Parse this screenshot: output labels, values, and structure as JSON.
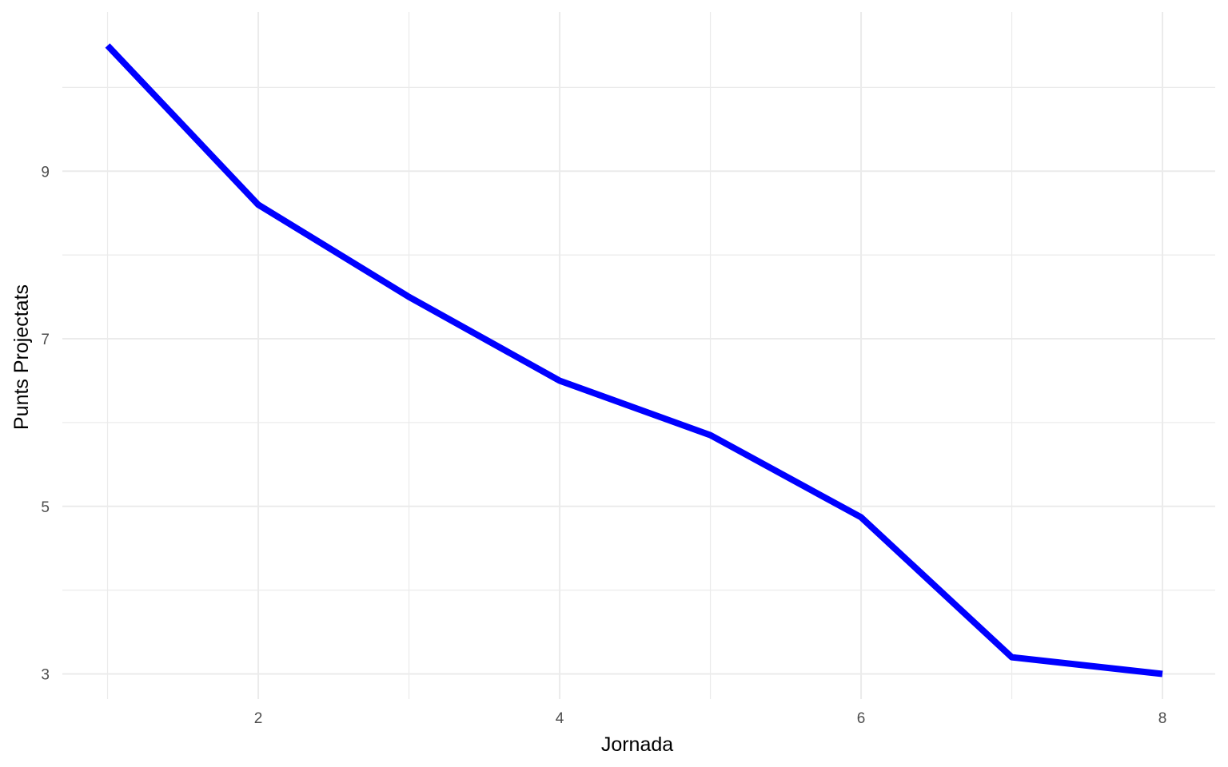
{
  "chart_data": {
    "type": "line",
    "xlabel": "Jornada",
    "ylabel": "Punts Projectats",
    "x": [
      1,
      2,
      3,
      4,
      5,
      6,
      7,
      8
    ],
    "series": [
      {
        "values": [
          10.5,
          8.6,
          7.5,
          6.5,
          5.85,
          4.87,
          3.2,
          3.0
        ]
      }
    ],
    "xlim": [
      0.7,
      8.35
    ],
    "ylim": [
      2.7,
      10.9
    ],
    "x_ticks": [
      2,
      4,
      6,
      8
    ],
    "x_tick_labels": [
      "2",
      "4",
      "6",
      "8"
    ],
    "x_minor_ticks": [
      1,
      3,
      5,
      7
    ],
    "y_ticks": [
      3,
      5,
      7,
      9
    ],
    "y_tick_labels": [
      "3",
      "5",
      "7",
      "9"
    ],
    "y_minor_ticks": [
      4,
      6,
      8,
      10
    ],
    "grid": true,
    "line_color": "#0000ff",
    "grid_color": "#ebebeb"
  }
}
